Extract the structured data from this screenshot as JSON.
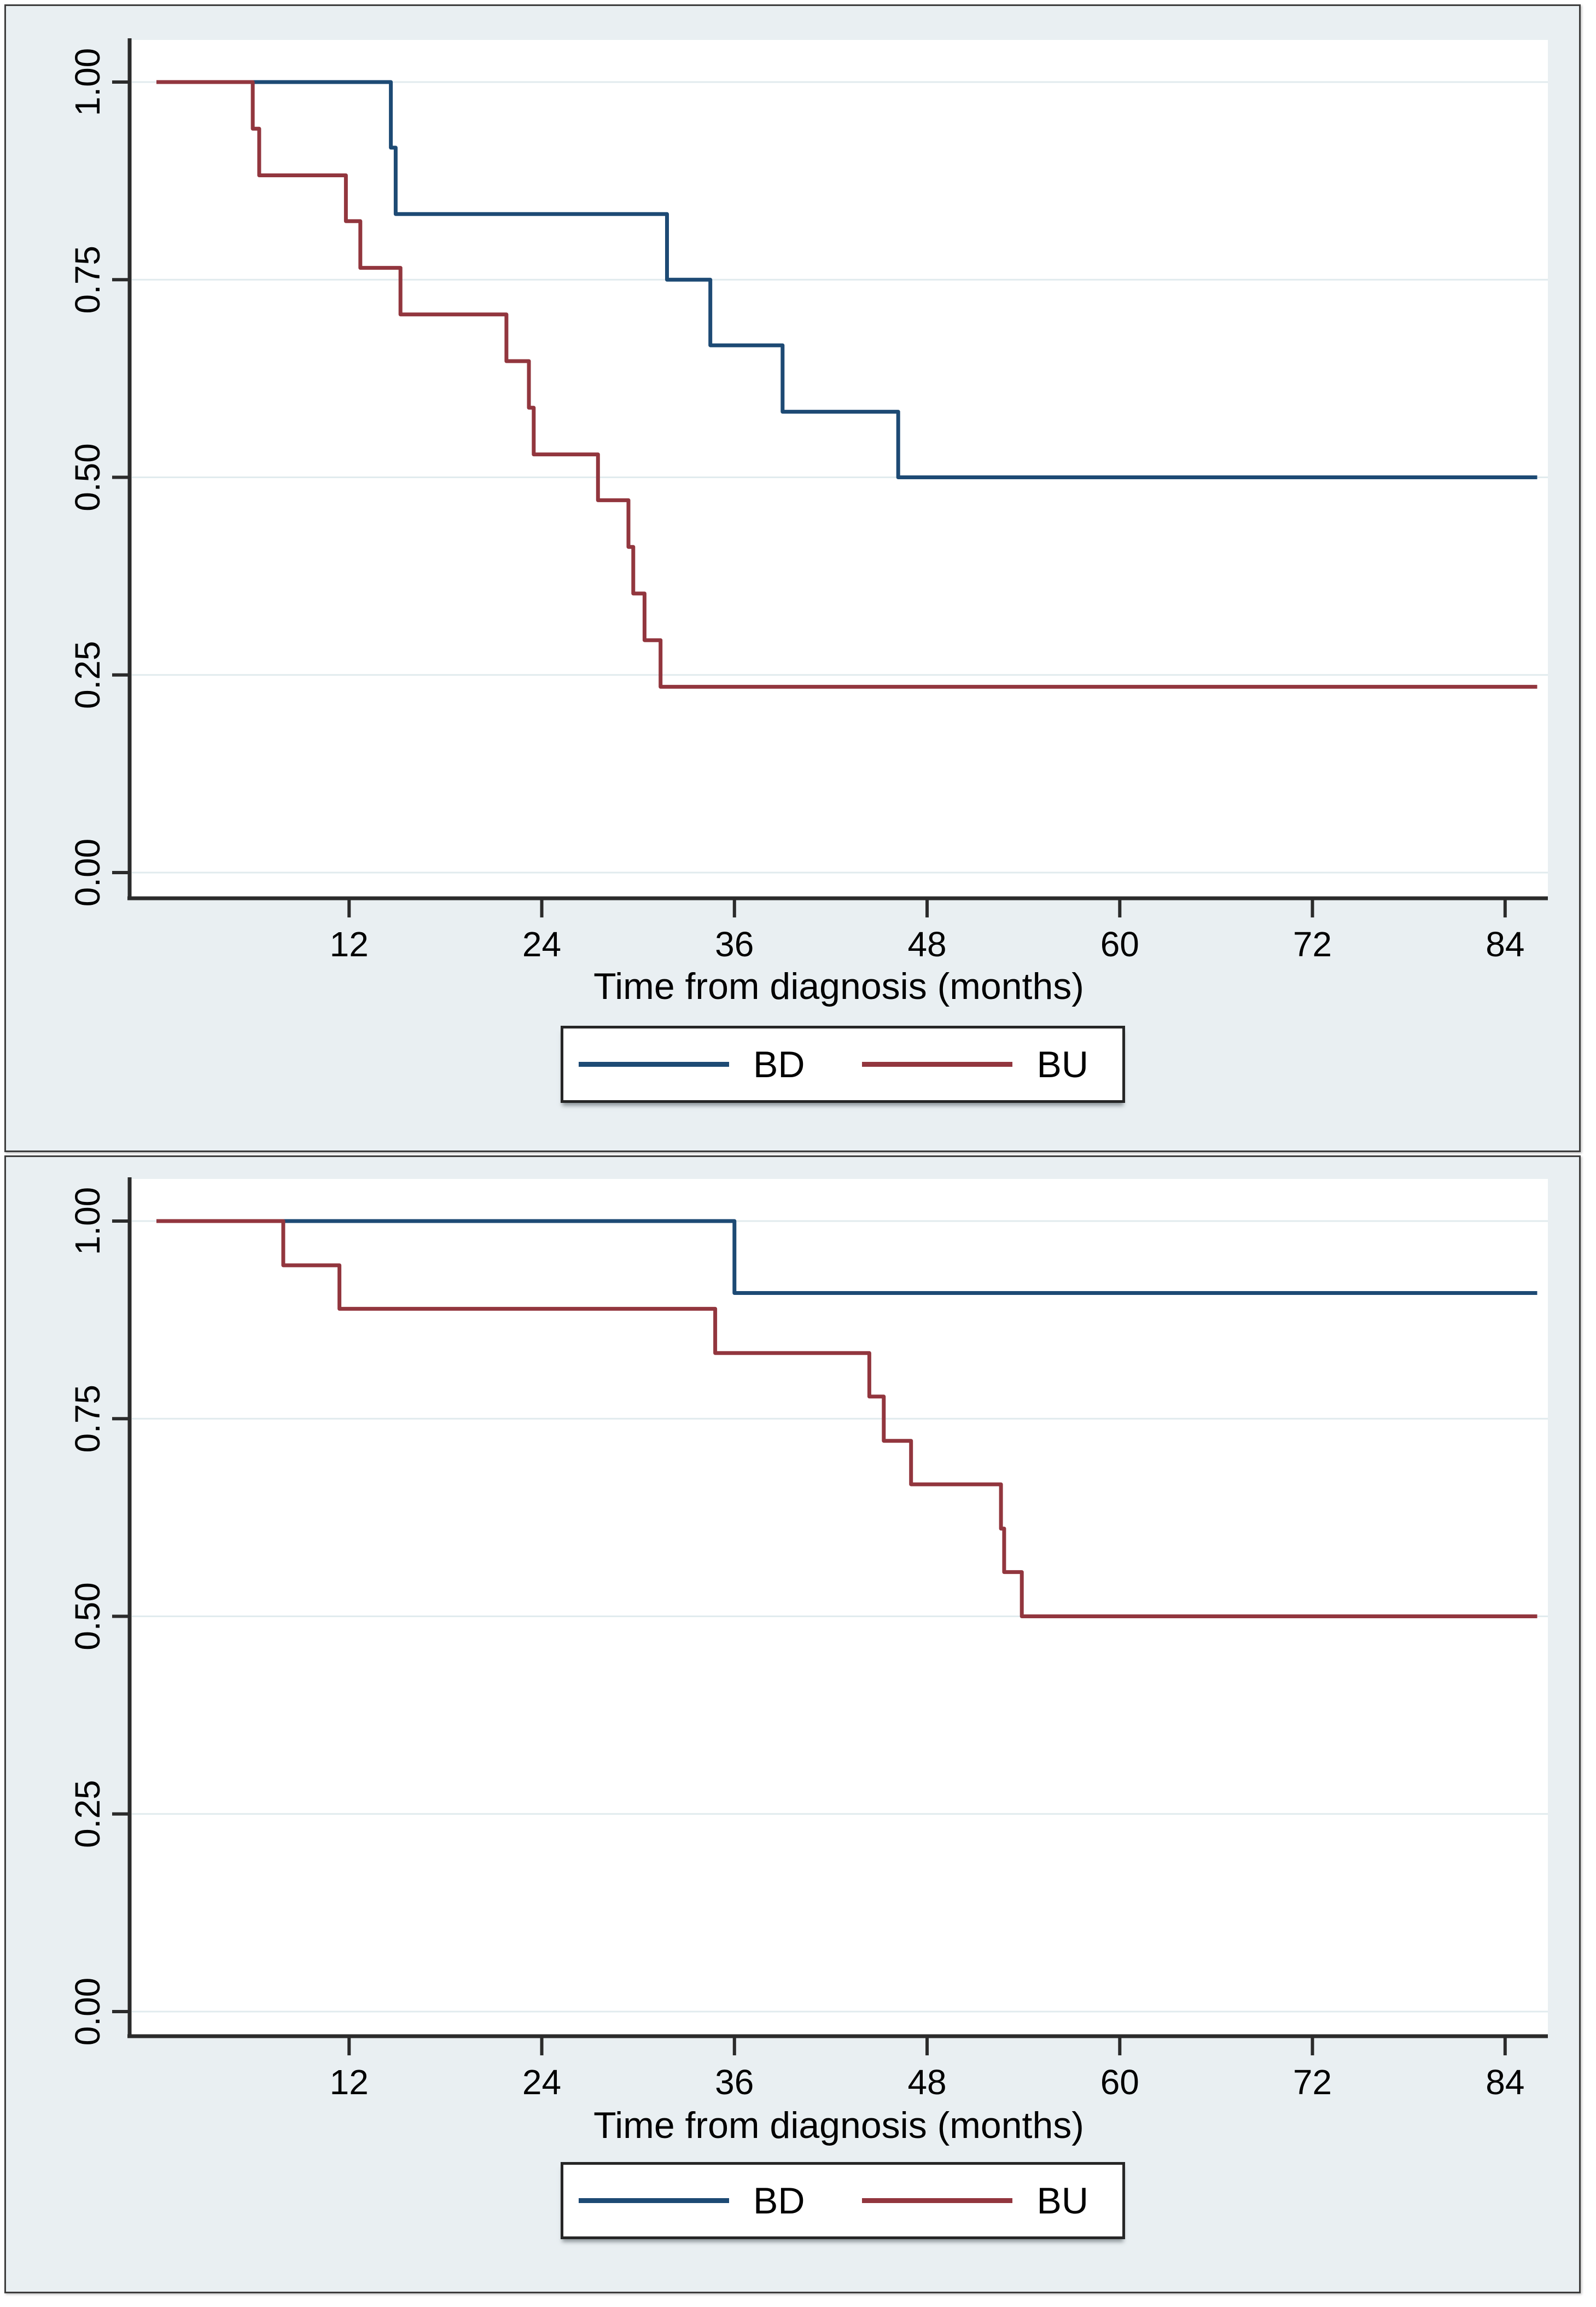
{
  "palette": {
    "bd_color": "#1d4a74",
    "bu_color": "#92363e",
    "figure_background": "#e9eff2",
    "plot_background": "#ffffff",
    "gridline_color": "#e1ebee",
    "axis_color": "#2b2b2b",
    "text_color": "#000000",
    "legend_border": "#262626"
  },
  "chart_data": [
    {
      "type": "line",
      "subtype": "kaplan-meier-step",
      "title": "",
      "xlabel": "Time from diagnosis (months)",
      "ylabel": "",
      "xlim": [
        0,
        87.5
      ],
      "ylim": [
        0,
        1
      ],
      "x_ticks": [
        12,
        24,
        36,
        48,
        60,
        72,
        84
      ],
      "y_tick_values": [
        1.0,
        0.75,
        0.5,
        0.25,
        0.0
      ],
      "y_tick_labels": [
        "1.00",
        "0.75",
        "0.50",
        "0.25",
        "0.00"
      ],
      "grid": "horizontal",
      "legend_position": "bottom-center",
      "series": [
        {
          "name": "BD",
          "color": "#1d4a74",
          "start": [
            0,
            1.0
          ],
          "end_time": 86,
          "events": [
            [
              14.6,
              0.917
            ],
            [
              14.9,
              0.833
            ],
            [
              31.8,
              0.75
            ],
            [
              34.5,
              0.667
            ],
            [
              39.0,
              0.583
            ],
            [
              46.2,
              0.5
            ]
          ]
        },
        {
          "name": "BU",
          "color": "#92363e",
          "start": [
            0,
            1.0
          ],
          "end_time": 86,
          "events": [
            [
              6.0,
              0.941
            ],
            [
              6.4,
              0.882
            ],
            [
              11.8,
              0.824
            ],
            [
              12.7,
              0.765
            ],
            [
              15.2,
              0.706
            ],
            [
              21.8,
              0.647
            ],
            [
              23.2,
              0.588
            ],
            [
              23.5,
              0.529
            ],
            [
              27.5,
              0.471
            ],
            [
              29.4,
              0.412
            ],
            [
              29.7,
              0.353
            ],
            [
              30.4,
              0.294
            ],
            [
              31.4,
              0.235
            ]
          ]
        }
      ]
    },
    {
      "type": "line",
      "subtype": "kaplan-meier-step",
      "title": "",
      "xlabel": "Time from diagnosis (months)",
      "ylabel": "",
      "xlim": [
        0,
        87.5
      ],
      "ylim": [
        0,
        1
      ],
      "x_ticks": [
        12,
        24,
        36,
        48,
        60,
        72,
        84
      ],
      "y_tick_values": [
        1.0,
        0.75,
        0.5,
        0.25,
        0.0
      ],
      "y_tick_labels": [
        "1.00",
        "0.75",
        "0.50",
        "0.25",
        "0.00"
      ],
      "grid": "horizontal",
      "legend_position": "bottom-center",
      "series": [
        {
          "name": "BD",
          "color": "#1d4a74",
          "start": [
            0,
            1.0
          ],
          "end_time": 86,
          "events": [
            [
              36.0,
              0.909
            ]
          ]
        },
        {
          "name": "BU",
          "color": "#92363e",
          "start": [
            0,
            1.0
          ],
          "end_time": 86,
          "events": [
            [
              7.9,
              0.944
            ],
            [
              11.4,
              0.889
            ],
            [
              34.8,
              0.833
            ],
            [
              44.4,
              0.778
            ],
            [
              45.3,
              0.722
            ],
            [
              47.0,
              0.667
            ],
            [
              52.6,
              0.611
            ],
            [
              52.8,
              0.556
            ],
            [
              53.9,
              0.5
            ]
          ]
        }
      ]
    }
  ]
}
